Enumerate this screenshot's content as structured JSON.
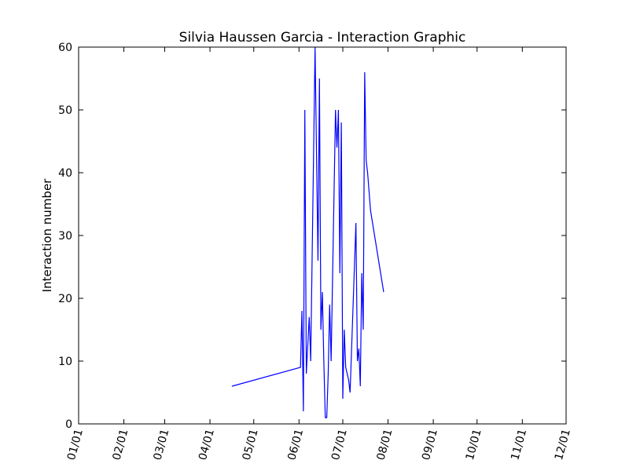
{
  "chart_data": {
    "type": "line",
    "title": "Silvia Haussen Garcia - Interaction Graphic",
    "xlabel": "",
    "ylabel": "Interaction number",
    "ylim": [
      0,
      60
    ],
    "yticks": [
      0,
      10,
      20,
      30,
      40,
      50,
      60
    ],
    "xlim": [
      "01/01",
      "12/01"
    ],
    "xticks": [
      "01/01",
      "02/01",
      "03/01",
      "04/01",
      "05/01",
      "06/01",
      "07/01",
      "08/01",
      "09/01",
      "10/01",
      "11/01",
      "12/01"
    ],
    "grid": false,
    "legend": "none",
    "line_color": "#0000ff",
    "series": [
      {
        "x": [
          "04/16",
          "06/02",
          "06/03",
          "06/04",
          "06/05",
          "06/06",
          "06/08",
          "06/09",
          "06/12",
          "06/14",
          "06/15",
          "06/16",
          "06/17",
          "06/18",
          "06/19",
          "06/20",
          "06/21",
          "06/22",
          "06/23",
          "06/26",
          "06/27",
          "06/28",
          "06/29",
          "06/30",
          "07/01",
          "07/02",
          "07/03",
          "07/04",
          "07/05",
          "07/06",
          "07/10",
          "07/11",
          "07/12",
          "07/13",
          "07/14",
          "07/15",
          "07/16",
          "07/17",
          "07/18",
          "07/20",
          "07/29"
        ],
        "y": [
          6,
          9,
          18,
          2,
          50,
          8,
          17,
          10,
          60,
          26,
          55,
          15,
          21,
          10,
          1,
          1,
          8,
          19,
          10,
          50,
          44,
          50,
          24,
          48,
          4,
          15,
          9,
          8,
          7,
          5,
          32,
          10,
          12,
          6,
          24,
          15,
          56,
          42,
          40,
          34,
          21
        ]
      }
    ]
  }
}
